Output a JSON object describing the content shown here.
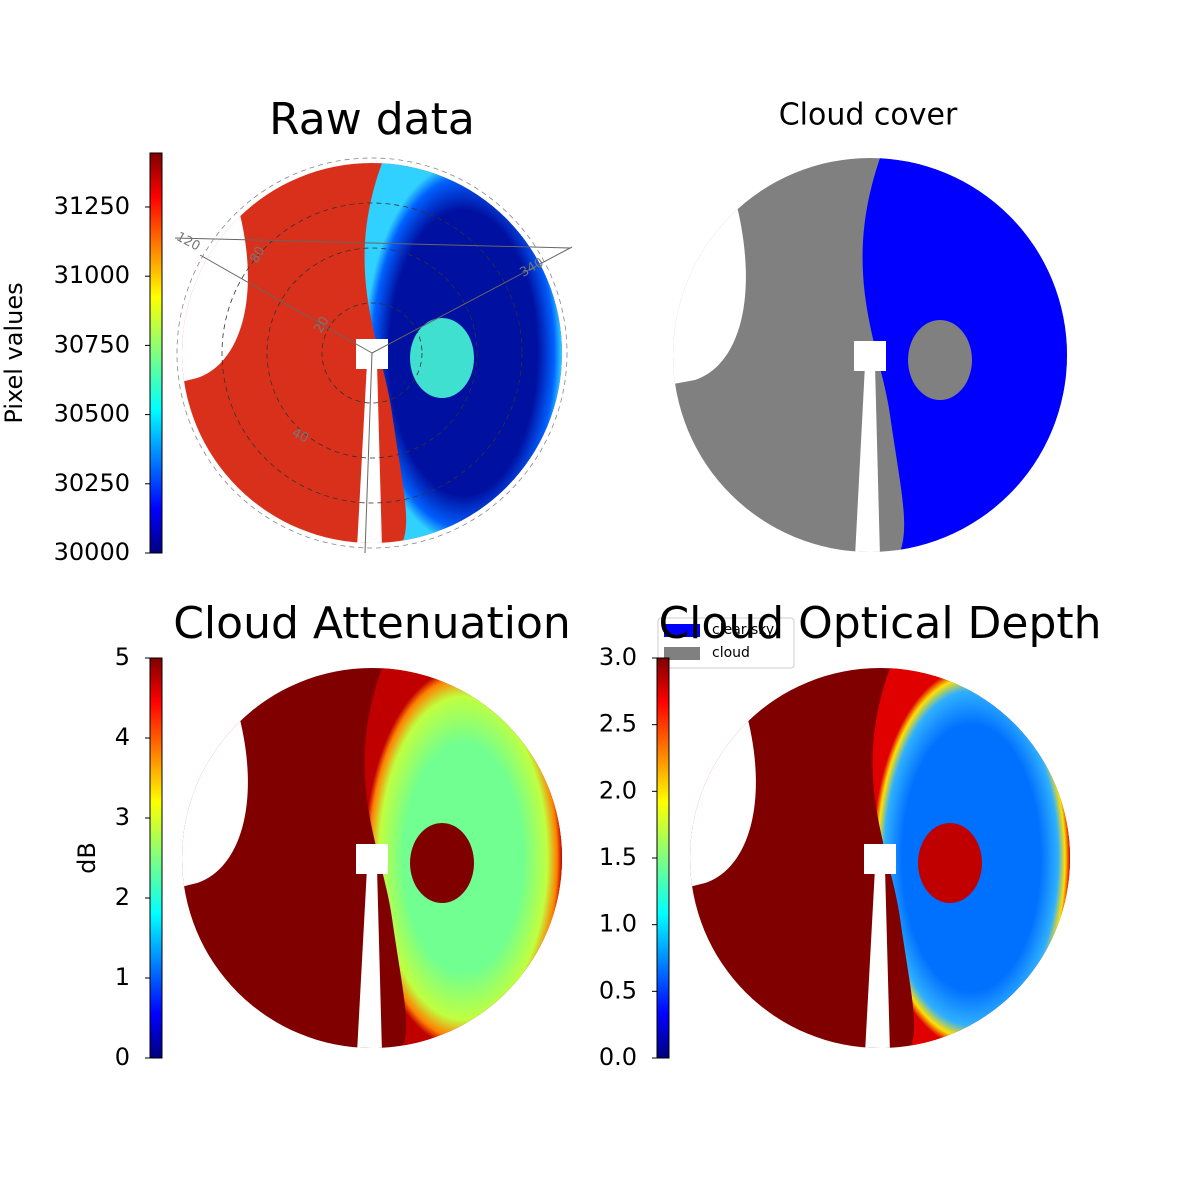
{
  "chart_data": [
    {
      "type": "image",
      "title": "Raw data",
      "cmap": "jet",
      "colorbar_label": "Pixel values",
      "ylim": [
        30000,
        31445
      ],
      "yticks": [
        30000,
        30250,
        30500,
        30750,
        31000,
        31250
      ],
      "annotations": [
        "120",
        "80",
        "20",
        "40",
        "340"
      ]
    },
    {
      "type": "image",
      "title": "Cloud cover",
      "series": [
        {
          "name": "clear sky",
          "color": "#0000ff"
        },
        {
          "name": "cloud",
          "color": "#808080"
        }
      ]
    },
    {
      "type": "image",
      "title": "Cloud Attenuation",
      "cmap": "jet",
      "colorbar_label": "dB",
      "ylim": [
        0,
        5
      ],
      "yticks": [
        0,
        1,
        2,
        3,
        4,
        5
      ]
    },
    {
      "type": "image",
      "title": "Cloud Optical Depth",
      "cmap": "jet",
      "ylim": [
        0,
        3
      ],
      "yticks": [
        {
          "value": 0,
          "label": "0.0"
        },
        {
          "value": 0.5,
          "label": "0.5"
        },
        {
          "value": 1,
          "label": "1.0"
        },
        {
          "value": 1.5,
          "label": "1.5"
        },
        {
          "value": 2,
          "label": "2.0"
        },
        {
          "value": 2.5,
          "label": "2.5"
        },
        {
          "value": 3,
          "label": "3.0"
        }
      ]
    }
  ]
}
